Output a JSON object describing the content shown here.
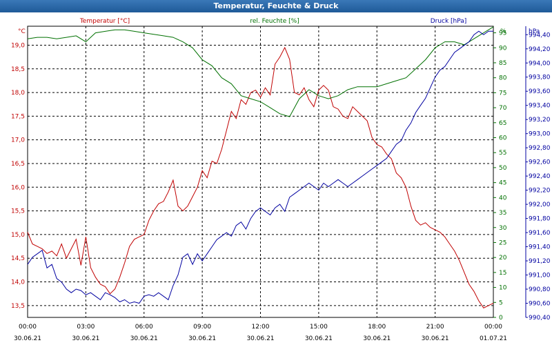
{
  "window": {
    "title": "Temperatur, Feuchte & Druck"
  },
  "colors": {
    "temperature": "#c00000",
    "humidity": "#007000",
    "pressure": "#0000a0"
  },
  "chart_data": {
    "type": "line",
    "title": "Temperatur, Feuchte & Druck",
    "grid": true,
    "x_ticks": [
      {
        "time": "00:00",
        "date": "30.06.21"
      },
      {
        "time": "03:00",
        "date": "30.06.21"
      },
      {
        "time": "06:00",
        "date": "30.06.21"
      },
      {
        "time": "09:00",
        "date": "30.06.21"
      },
      {
        "time": "12:00",
        "date": "30.06.21"
      },
      {
        "time": "15:00",
        "date": "30.06.21"
      },
      {
        "time": "18:00",
        "date": "30.06.21"
      },
      {
        "time": "21:00",
        "date": "30.06.21"
      },
      {
        "time": "00:00",
        "date": "01.07.21"
      }
    ],
    "x_range_hours": [
      0,
      24
    ],
    "axes": {
      "left": {
        "label": "Temperatur [°C]",
        "unit": "°C",
        "range": [
          13.25,
          19.4
        ],
        "ticks": [
          "13,5",
          "14,0",
          "14,5",
          "15,0",
          "15,5",
          "16,0",
          "16,5",
          "17,0",
          "17,5",
          "18,0",
          "18,5",
          "19,0"
        ]
      },
      "middle": {
        "label": "rel. Feuchte [%]",
        "unit": "%",
        "range": [
          0,
          97.2
        ],
        "ticks": [
          "0",
          "5",
          "10",
          "15",
          "20",
          "25",
          "30",
          "35",
          "40",
          "45",
          "50",
          "55",
          "60",
          "65",
          "70",
          "75",
          "80",
          "85",
          "90",
          "95"
        ]
      },
      "right": {
        "label": "Druck [hPa]",
        "unit": "hPa",
        "range": [
          990.4,
          994.52
        ],
        "ticks": [
          "990,40",
          "990,60",
          "990,80",
          "991,00",
          "991,20",
          "991,40",
          "991,60",
          "991,80",
          "992,00",
          "992,20",
          "992,40",
          "992,60",
          "992,80",
          "993,00",
          "993,20",
          "993,40",
          "993,60",
          "993,80",
          "994,00",
          "994,20",
          "994,40"
        ]
      }
    },
    "series": [
      {
        "name": "Temperatur [°C]",
        "axis": "left",
        "x": [
          0,
          0.25,
          0.5,
          0.75,
          1,
          1.25,
          1.5,
          1.75,
          2,
          2.25,
          2.5,
          2.75,
          3,
          3.25,
          3.5,
          3.75,
          4,
          4.25,
          4.5,
          4.75,
          5,
          5.25,
          5.5,
          5.75,
          6,
          6.25,
          6.5,
          6.75,
          7,
          7.25,
          7.5,
          7.75,
          8,
          8.25,
          8.5,
          8.75,
          9,
          9.25,
          9.5,
          9.75,
          10,
          10.25,
          10.5,
          10.75,
          11,
          11.25,
          11.5,
          11.75,
          12,
          12.25,
          12.5,
          12.75,
          13,
          13.25,
          13.5,
          13.75,
          14,
          14.25,
          14.5,
          14.75,
          15,
          15.25,
          15.5,
          15.75,
          16,
          16.25,
          16.5,
          16.75,
          17,
          17.25,
          17.5,
          17.75,
          18,
          18.25,
          18.5,
          18.75,
          19,
          19.25,
          19.5,
          19.75,
          20,
          20.25,
          20.5,
          20.75,
          21,
          21.25,
          21.5,
          21.75,
          22,
          22.25,
          22.5,
          22.75,
          23,
          23.25,
          23.5,
          23.75,
          24
        ],
        "values": [
          15.05,
          14.8,
          14.75,
          14.7,
          14.6,
          14.65,
          14.55,
          14.8,
          14.5,
          14.7,
          14.9,
          14.35,
          14.95,
          14.3,
          14.1,
          13.95,
          13.9,
          13.75,
          13.85,
          14.1,
          14.4,
          14.75,
          14.9,
          14.95,
          15.0,
          15.3,
          15.5,
          15.65,
          15.7,
          15.9,
          16.15,
          15.6,
          15.5,
          15.6,
          15.8,
          16.0,
          16.35,
          16.2,
          16.55,
          16.5,
          16.8,
          17.2,
          17.6,
          17.45,
          17.85,
          17.75,
          18.0,
          18.05,
          17.9,
          18.1,
          17.95,
          18.6,
          18.75,
          18.95,
          18.7,
          18.0,
          17.95,
          18.1,
          17.85,
          17.7,
          18.05,
          18.15,
          18.05,
          17.7,
          17.65,
          17.5,
          17.45,
          17.7,
          17.6,
          17.5,
          17.4,
          17.05,
          16.9,
          16.85,
          16.7,
          16.6,
          16.3,
          16.2,
          16.0,
          15.6,
          15.3,
          15.2,
          15.25,
          15.15,
          15.1,
          15.05,
          14.95,
          14.8,
          14.65,
          14.45,
          14.2,
          13.95,
          13.8,
          13.6,
          13.45,
          13.5,
          13.55
        ]
      },
      {
        "name": "rel. Feuchte [%]",
        "axis": "middle",
        "x": [
          0,
          0.5,
          1,
          1.5,
          2,
          2.5,
          3,
          3.5,
          4,
          4.5,
          5,
          5.5,
          6,
          6.5,
          7,
          7.5,
          8,
          8.5,
          9,
          9.5,
          10,
          10.5,
          11,
          11.5,
          12,
          12.5,
          13,
          13.5,
          14,
          14.5,
          15,
          15.5,
          16,
          16.5,
          17,
          17.5,
          18,
          18.5,
          19,
          19.5,
          20,
          20.5,
          21,
          21.5,
          22,
          22.5,
          23,
          23.5,
          24
        ],
        "values": [
          93,
          93.5,
          93.5,
          93,
          93.5,
          94,
          92,
          95,
          95.5,
          96,
          96,
          95.5,
          95,
          94.5,
          94,
          93.5,
          92,
          90,
          86,
          84,
          80,
          78,
          74,
          73,
          72,
          70,
          68,
          67,
          73,
          76,
          74,
          73,
          74,
          76,
          77,
          77,
          77,
          78,
          79,
          80,
          83,
          86,
          90,
          92,
          92,
          91,
          93,
          95,
          97
        ]
      },
      {
        "name": "Druck [hPa]",
        "axis": "right",
        "x": [
          0,
          0.25,
          0.5,
          0.75,
          1,
          1.25,
          1.5,
          1.75,
          2,
          2.25,
          2.5,
          2.75,
          3,
          3.25,
          3.5,
          3.75,
          4,
          4.25,
          4.5,
          4.75,
          5,
          5.25,
          5.5,
          5.75,
          6,
          6.25,
          6.5,
          6.75,
          7,
          7.25,
          7.5,
          7.75,
          8,
          8.25,
          8.5,
          8.75,
          9,
          9.25,
          9.5,
          9.75,
          10,
          10.25,
          10.5,
          10.75,
          11,
          11.25,
          11.5,
          11.75,
          12,
          12.25,
          12.5,
          12.75,
          13,
          13.25,
          13.5,
          13.75,
          14,
          14.25,
          14.5,
          14.75,
          15,
          15.25,
          15.5,
          15.75,
          16,
          16.25,
          16.5,
          16.75,
          17,
          17.25,
          17.5,
          17.75,
          18,
          18.25,
          18.5,
          18.75,
          19,
          19.25,
          19.5,
          19.75,
          20,
          20.25,
          20.5,
          20.75,
          21,
          21.25,
          21.5,
          21.75,
          22,
          22.25,
          22.5,
          22.75,
          23,
          23.25,
          23.5,
          23.75,
          24
        ],
        "values": [
          991.15,
          991.25,
          991.3,
          991.35,
          991.1,
          991.15,
          990.95,
          990.9,
          990.8,
          990.75,
          990.8,
          990.78,
          990.72,
          990.75,
          990.7,
          990.65,
          990.75,
          990.72,
          990.68,
          990.62,
          990.65,
          990.6,
          990.62,
          990.6,
          990.7,
          990.72,
          990.7,
          990.75,
          990.7,
          990.65,
          990.85,
          991.0,
          991.25,
          991.3,
          991.15,
          991.3,
          991.2,
          991.3,
          991.4,
          991.5,
          991.55,
          991.6,
          991.55,
          991.7,
          991.75,
          991.65,
          991.8,
          991.9,
          991.95,
          991.9,
          991.85,
          991.95,
          992.0,
          991.9,
          992.1,
          992.15,
          992.2,
          992.25,
          992.3,
          992.25,
          992.2,
          992.3,
          992.25,
          992.3,
          992.35,
          992.3,
          992.25,
          992.3,
          992.35,
          992.4,
          992.45,
          992.5,
          992.55,
          992.6,
          992.65,
          992.75,
          992.85,
          992.9,
          993.05,
          993.15,
          993.3,
          993.4,
          993.5,
          993.65,
          993.8,
          993.9,
          993.95,
          994.05,
          994.15,
          994.2,
          994.25,
          994.3,
          994.4,
          994.45,
          994.4,
          994.45,
          994.45
        ]
      }
    ]
  }
}
